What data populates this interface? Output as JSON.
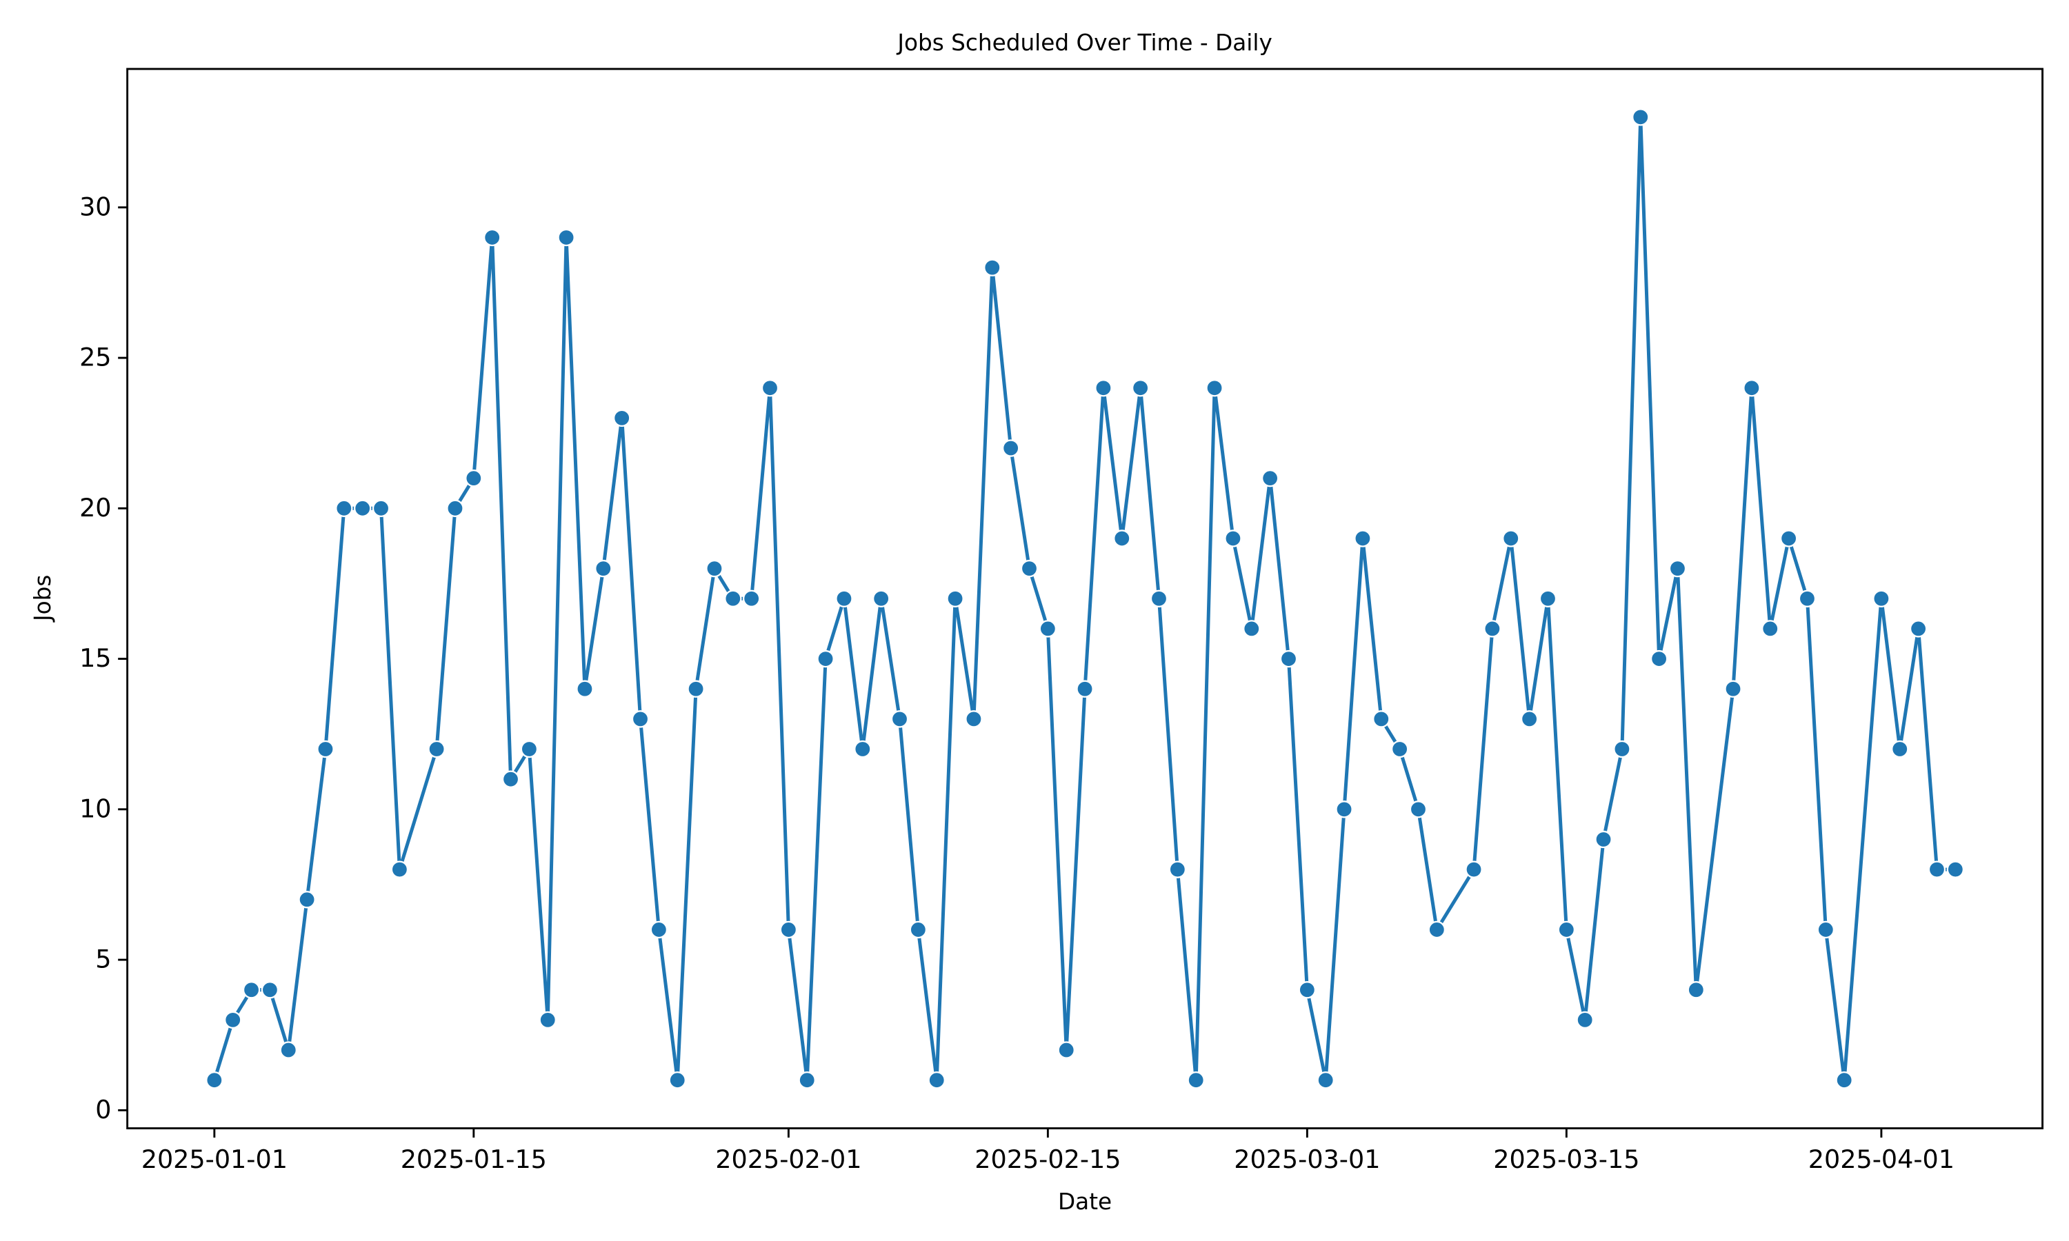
{
  "chart_data": {
    "type": "line",
    "title": "Jobs Scheduled Over Time - Daily",
    "x_label": "Date",
    "y_label": "Jobs",
    "x": [
      "2025-01-01",
      "2025-01-02",
      "2025-01-03",
      "2025-01-04",
      "2025-01-05",
      "2025-01-06",
      "2025-01-07",
      "2025-01-08",
      "2025-01-09",
      "2025-01-10",
      "2025-01-11",
      "2025-01-13",
      "2025-01-14",
      "2025-01-15",
      "2025-01-16",
      "2025-01-17",
      "2025-01-18",
      "2025-01-19",
      "2025-01-20",
      "2025-01-21",
      "2025-01-22",
      "2025-01-23",
      "2025-01-24",
      "2025-01-25",
      "2025-01-26",
      "2025-01-27",
      "2025-01-28",
      "2025-01-29",
      "2025-01-30",
      "2025-01-31",
      "2025-02-01",
      "2025-02-02",
      "2025-02-03",
      "2025-02-04",
      "2025-02-05",
      "2025-02-06",
      "2025-02-07",
      "2025-02-08",
      "2025-02-09",
      "2025-02-10",
      "2025-02-11",
      "2025-02-12",
      "2025-02-13",
      "2025-02-14",
      "2025-02-15",
      "2025-02-16",
      "2025-02-17",
      "2025-02-18",
      "2025-02-19",
      "2025-02-20",
      "2025-02-21",
      "2025-02-22",
      "2025-02-23",
      "2025-02-24",
      "2025-02-25",
      "2025-02-26",
      "2025-02-27",
      "2025-02-28",
      "2025-03-01",
      "2025-03-02",
      "2025-03-03",
      "2025-03-04",
      "2025-03-05",
      "2025-03-06",
      "2025-03-07",
      "2025-03-08",
      "2025-03-10",
      "2025-03-11",
      "2025-03-12",
      "2025-03-13",
      "2025-03-14",
      "2025-03-15",
      "2025-03-16",
      "2025-03-17",
      "2025-03-18",
      "2025-03-19",
      "2025-03-20",
      "2025-03-21",
      "2025-03-22",
      "2025-03-24",
      "2025-03-25",
      "2025-03-26",
      "2025-03-27",
      "2025-03-28",
      "2025-03-29",
      "2025-03-30",
      "2025-04-01",
      "2025-04-02",
      "2025-04-03",
      "2025-04-04",
      "2025-04-05"
    ],
    "series": [
      {
        "name": "Jobs",
        "color": "#1f77b4",
        "values": [
          1,
          3,
          4,
          4,
          2,
          7,
          12,
          20,
          20,
          20,
          8,
          12,
          20,
          21,
          29,
          11,
          12,
          3,
          29,
          14,
          18,
          23,
          13,
          6,
          1,
          14,
          18,
          17,
          17,
          24,
          6,
          1,
          15,
          17,
          12,
          17,
          13,
          6,
          1,
          17,
          13,
          28,
          22,
          18,
          16,
          2,
          14,
          24,
          19,
          24,
          17,
          8,
          1,
          24,
          19,
          16,
          21,
          15,
          4,
          1,
          10,
          19,
          13,
          12,
          10,
          6,
          8,
          16,
          19,
          13,
          17,
          6,
          3,
          9,
          12,
          33,
          15,
          18,
          4,
          14,
          24,
          16,
          19,
          17,
          6,
          1,
          17,
          12,
          16,
          8,
          8
        ]
      }
    ],
    "xlim": [
      "2024-12-27T07:12",
      "2025-04-09T16:48"
    ],
    "xticks": [
      "2025-01-01",
      "2025-01-15",
      "2025-02-01",
      "2025-02-15",
      "2025-03-01",
      "2025-03-15",
      "2025-04-01"
    ],
    "ylim": [
      -0.6,
      34.6
    ],
    "yticks": [
      0,
      5,
      10,
      15,
      20,
      25,
      30
    ],
    "grid": false
  }
}
